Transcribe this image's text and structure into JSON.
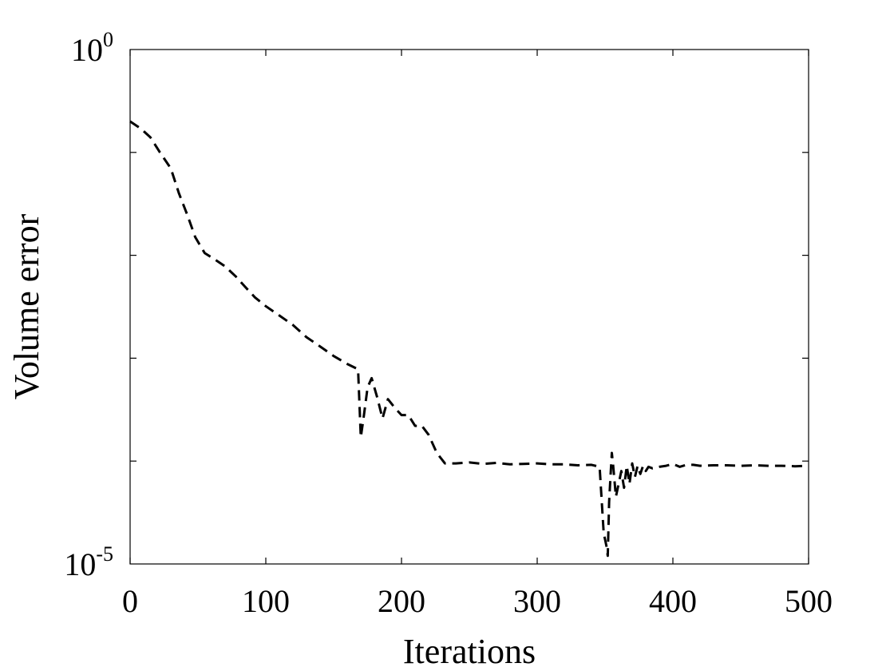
{
  "chart_data": {
    "type": "line",
    "title": "",
    "xlabel": "Iterations",
    "ylabel": "Volume error",
    "xlim": [
      0,
      500
    ],
    "ylim": [
      1e-05,
      1
    ],
    "yscale": "log",
    "grid": false,
    "line_style": "dashed",
    "line_color": "#000000",
    "x_ticks": [
      {
        "value": 0,
        "label": "0"
      },
      {
        "value": 100,
        "label": "100"
      },
      {
        "value": 200,
        "label": "200"
      },
      {
        "value": 300,
        "label": "300"
      },
      {
        "value": 400,
        "label": "400"
      },
      {
        "value": 500,
        "label": "500"
      }
    ],
    "y_ticks": [
      {
        "value": 1e-05,
        "base": "10",
        "exp": "-5"
      },
      {
        "value": 1,
        "base": "10",
        "exp": "0"
      }
    ],
    "y_minor_ticks": [
      0.0001,
      0.001,
      0.01,
      0.1
    ],
    "series": [
      {
        "x": [
          0,
          8,
          15,
          22,
          30,
          36,
          42,
          48,
          55,
          62,
          70,
          78,
          85,
          92,
          100,
          110,
          120,
          130,
          140,
          150,
          160,
          168,
          170,
          172,
          175,
          178,
          182,
          186,
          190,
          195,
          200,
          205,
          210,
          215,
          220,
          226,
          232,
          240,
          250,
          260,
          270,
          280,
          290,
          300,
          310,
          320,
          330,
          340,
          346,
          349,
          351,
          352,
          353,
          354,
          355,
          356,
          358,
          360,
          362,
          364,
          366,
          368,
          370,
          372,
          374,
          376,
          378,
          380,
          382,
          385,
          390,
          395,
          400,
          405,
          410,
          415,
          420,
          430,
          440,
          450,
          460,
          470,
          480,
          490,
          500
        ],
        "y": [
          0.2,
          0.17,
          0.14,
          0.1,
          0.07,
          0.04,
          0.025,
          0.015,
          0.0105,
          0.0092,
          0.0078,
          0.0062,
          0.0049,
          0.0039,
          0.0032,
          0.0026,
          0.0021,
          0.0016,
          0.0013,
          0.00105,
          0.00088,
          0.00078,
          0.00017,
          0.00026,
          0.00052,
          0.00064,
          0.00042,
          0.00026,
          0.0004,
          0.00033,
          0.00028,
          0.00028,
          0.00022,
          0.00022,
          0.00018,
          0.00012,
          9.5e-05,
          9.5e-05,
          9.7e-05,
          9.4e-05,
          9.6e-05,
          9.3e-05,
          9.4e-05,
          9.5e-05,
          9.3e-05,
          9.3e-05,
          9.1e-05,
          9.2e-05,
          8.8e-05,
          2e-05,
          1.5e-05,
          1.2e-05,
          4e-05,
          7e-05,
          0.00012,
          9e-05,
          4.5e-05,
          6e-05,
          8e-05,
          5.5e-05,
          9e-05,
          6e-05,
          9.5e-05,
          7e-05,
          9e-05,
          7.5e-05,
          9e-05,
          8e-05,
          8.8e-05,
          8.5e-05,
          8.8e-05,
          9e-05,
          9.4e-05,
          8.8e-05,
          9.2e-05,
          9.2e-05,
          9e-05,
          9.1e-05,
          9.1e-05,
          9e-05,
          9.1e-05,
          9e-05,
          9e-05,
          8.9e-05,
          9e-05
        ]
      }
    ]
  }
}
